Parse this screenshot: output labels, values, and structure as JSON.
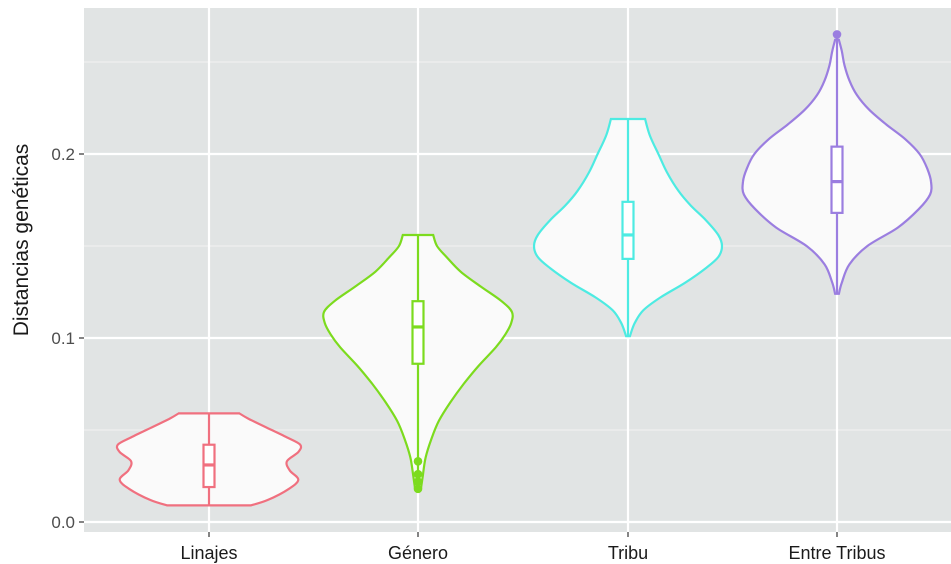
{
  "chart_data": {
    "type": "violin",
    "title": "",
    "xlabel": "",
    "ylabel": "Distancias genéticas",
    "ylim": [
      0.0,
      0.27
    ],
    "yticks": [
      0.0,
      0.1,
      0.2
    ],
    "ytick_labels": [
      "0.0",
      "0.1",
      "0.2"
    ],
    "grid": true,
    "legend": "none",
    "categories": [
      "Linajes",
      "Género",
      "Tribu",
      "Entre Tribus"
    ],
    "series": [
      {
        "category": "Linajes",
        "color": "#F0707F",
        "min": 0.009,
        "max": 0.059,
        "q1": 0.019,
        "median": 0.031,
        "q3": 0.042,
        "outliers": [],
        "profile": [
          [
            0.009,
            0.44
          ],
          [
            0.012,
            0.62
          ],
          [
            0.018,
            0.84
          ],
          [
            0.023,
            0.94
          ],
          [
            0.028,
            0.85
          ],
          [
            0.033,
            0.82
          ],
          [
            0.038,
            0.94
          ],
          [
            0.042,
            0.96
          ],
          [
            0.046,
            0.82
          ],
          [
            0.051,
            0.62
          ],
          [
            0.056,
            0.42
          ],
          [
            0.059,
            0.32
          ]
        ]
      },
      {
        "category": "Género",
        "color": "#7CDB1E",
        "min": 0.018,
        "max": 0.156,
        "q1": 0.086,
        "median": 0.106,
        "q3": 0.12,
        "outliers": [
          0.018,
          0.022,
          0.026,
          0.033
        ],
        "profile": [
          [
            0.018,
            0.03
          ],
          [
            0.025,
            0.05
          ],
          [
            0.035,
            0.08
          ],
          [
            0.045,
            0.14
          ],
          [
            0.055,
            0.22
          ],
          [
            0.065,
            0.34
          ],
          [
            0.075,
            0.48
          ],
          [
            0.085,
            0.64
          ],
          [
            0.095,
            0.82
          ],
          [
            0.102,
            0.92
          ],
          [
            0.108,
            0.98
          ],
          [
            0.114,
            0.99
          ],
          [
            0.12,
            0.88
          ],
          [
            0.128,
            0.66
          ],
          [
            0.136,
            0.45
          ],
          [
            0.144,
            0.3
          ],
          [
            0.15,
            0.2
          ],
          [
            0.156,
            0.16
          ]
        ]
      },
      {
        "category": "Tribu",
        "color": "#4DEBE2",
        "min": 0.101,
        "max": 0.219,
        "q1": 0.143,
        "median": 0.156,
        "q3": 0.174,
        "outliers": [],
        "profile": [
          [
            0.101,
            0.02
          ],
          [
            0.108,
            0.07
          ],
          [
            0.115,
            0.16
          ],
          [
            0.122,
            0.34
          ],
          [
            0.13,
            0.6
          ],
          [
            0.138,
            0.82
          ],
          [
            0.144,
            0.95
          ],
          [
            0.15,
            0.99
          ],
          [
            0.156,
            0.95
          ],
          [
            0.164,
            0.82
          ],
          [
            0.172,
            0.66
          ],
          [
            0.18,
            0.53
          ],
          [
            0.19,
            0.41
          ],
          [
            0.2,
            0.32
          ],
          [
            0.21,
            0.23
          ],
          [
            0.219,
            0.18
          ]
        ]
      },
      {
        "category": "Entre Tribus",
        "color": "#9B7EE0",
        "min": 0.124,
        "max": 0.265,
        "q1": 0.168,
        "median": 0.185,
        "q3": 0.204,
        "outliers": [
          0.265
        ],
        "profile": [
          [
            0.124,
            0.02
          ],
          [
            0.13,
            0.05
          ],
          [
            0.14,
            0.13
          ],
          [
            0.15,
            0.32
          ],
          [
            0.16,
            0.64
          ],
          [
            0.17,
            0.86
          ],
          [
            0.178,
            0.98
          ],
          [
            0.185,
            0.99
          ],
          [
            0.192,
            0.95
          ],
          [
            0.2,
            0.87
          ],
          [
            0.208,
            0.72
          ],
          [
            0.216,
            0.52
          ],
          [
            0.224,
            0.34
          ],
          [
            0.232,
            0.21
          ],
          [
            0.24,
            0.13
          ],
          [
            0.248,
            0.08
          ],
          [
            0.256,
            0.05
          ],
          [
            0.262,
            0.02
          ]
        ]
      }
    ]
  }
}
